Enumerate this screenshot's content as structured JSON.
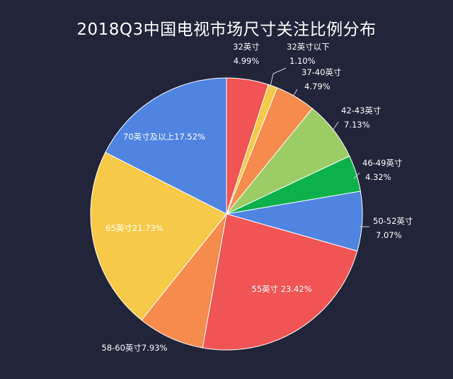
{
  "title": "2018Q3中国电视市场尺寸关注比例分布",
  "chart_data": {
    "type": "pie",
    "title": "2018Q3中国电视市场尺寸关注比例分布",
    "unit": "%",
    "slices": [
      {
        "label": "32英寸",
        "value": 4.99,
        "value_text": "4.99%",
        "color": "#f05454"
      },
      {
        "label": "32英寸以下",
        "value": 1.1,
        "value_text": "1.10%",
        "color": "#f7c948"
      },
      {
        "label": "37-40英寸",
        "value": 4.79,
        "value_text": "4.79%",
        "color": "#f58b4c"
      },
      {
        "label": "42-43英寸",
        "value": 7.13,
        "value_text": "7.13%",
        "color": "#9ccc65"
      },
      {
        "label": "46-49英寸",
        "value": 4.32,
        "value_text": "4.32%",
        "color": "#0db14b"
      },
      {
        "label": "50-52英寸",
        "value": 7.07,
        "value_text": "7.07%",
        "color": "#4f84e0"
      },
      {
        "label": "55英寸",
        "value": 23.42,
        "value_text": "23.42%",
        "color": "#f05454"
      },
      {
        "label": "58-60英寸",
        "value": 7.93,
        "value_text": "7.93%",
        "color": "#f58b4c"
      },
      {
        "label": "65英寸",
        "value": 21.73,
        "value_text": "21.73%",
        "color": "#f7c948"
      },
      {
        "label": "70英寸及以上",
        "value": 17.52,
        "value_text": "17.52%",
        "color": "#4f84e0"
      }
    ],
    "start_direction": "top",
    "order": "clockwise"
  }
}
